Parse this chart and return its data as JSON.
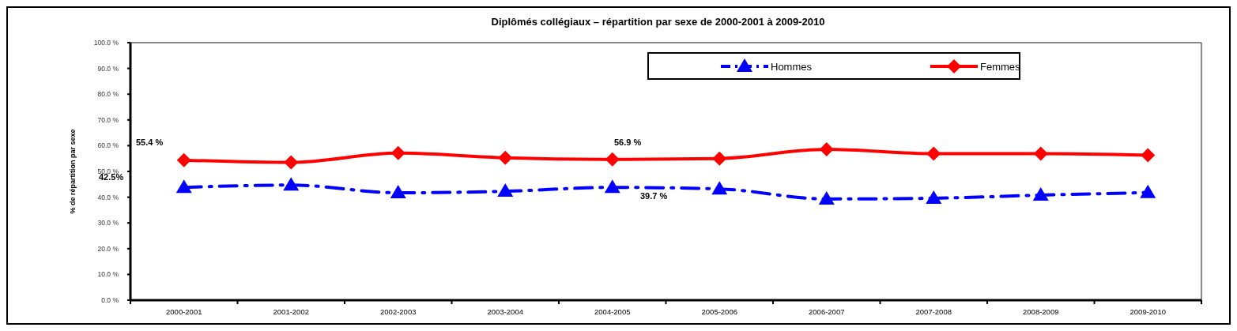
{
  "chart_data": {
    "type": "line",
    "title": "Diplômés collégiaux – répartition par sexe de 2000-2001 à  2009-2010",
    "ylabel": "% de répartition par sexe",
    "categories": [
      "2000-2001",
      "2001-2002",
      "2002-2003",
      "2003-2004",
      "2004-2005",
      "2005-2006",
      "2006-2007",
      "2007-2008",
      "2008-2009",
      "2009-2010"
    ],
    "series": [
      {
        "name": "Hommes",
        "color": "#0000ff",
        "marker": "triangle",
        "line_style": "dashdot",
        "values": [
          43.8,
          44.7,
          41.7,
          42.3,
          43.8,
          43.2,
          39.3,
          39.6,
          40.8,
          41.8
        ]
      },
      {
        "name": "Femmes",
        "color": "#ff0000",
        "marker": "diamond",
        "line_style": "solid",
        "values": [
          54.4,
          53.5,
          57.1,
          55.3,
          54.7,
          55.0,
          58.6,
          56.9,
          56.9,
          56.3
        ]
      }
    ],
    "ylim": [
      0,
      100
    ],
    "yticks": [
      {
        "value": 0,
        "label": "0.0 %"
      },
      {
        "value": 10,
        "label": "10.0 %"
      },
      {
        "value": 20,
        "label": "20.0 %"
      },
      {
        "value": 30,
        "label": "30.0 %"
      },
      {
        "value": 40,
        "label": "40.0 %"
      },
      {
        "value": 50,
        "label": "50.0 %"
      },
      {
        "value": 60,
        "label": "60.0 %"
      },
      {
        "value": 70,
        "label": "70.0 %"
      },
      {
        "value": 80,
        "label": "80.0 %"
      },
      {
        "value": 90,
        "label": "90.0 %"
      },
      {
        "value": 100,
        "label": "100.0 %"
      }
    ],
    "annotations": [
      "55.4 %",
      "56.9 %",
      "42.5%",
      "39.7 %"
    ],
    "grid": false,
    "legend": "top right"
  }
}
